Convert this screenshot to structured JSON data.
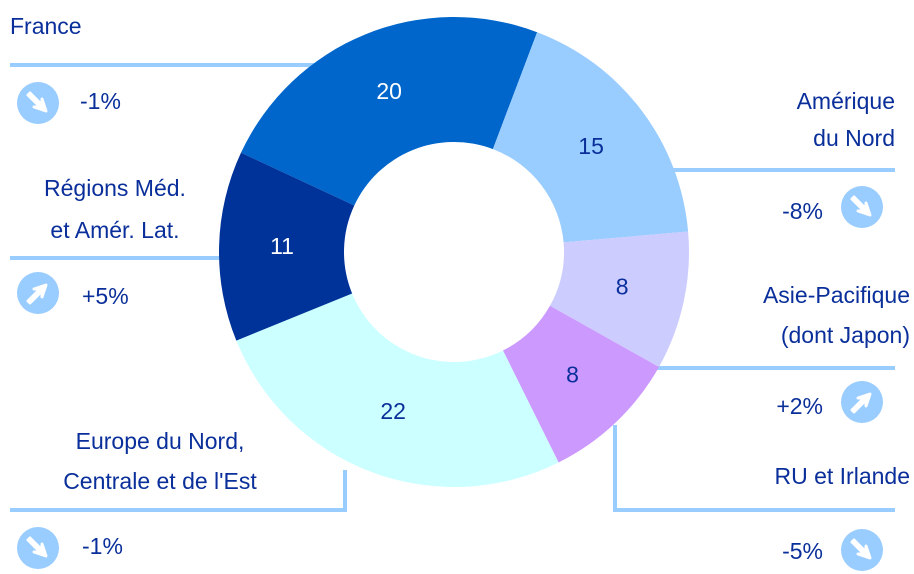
{
  "chart_data": {
    "type": "donut",
    "series": [
      {
        "label": [
          "France"
        ],
        "value": 20,
        "change": "-1%",
        "trend": "down",
        "color": "#0066cc",
        "text_color": "#ffffff"
      },
      {
        "label": [
          "Amérique",
          "du Nord"
        ],
        "value": 15,
        "change": "-8%",
        "trend": "down",
        "color": "#99ccff",
        "text_color": "#0a2f9a"
      },
      {
        "label": [
          "Asie-Pacifique",
          "(dont Japon)"
        ],
        "value": 8,
        "change": "+2%",
        "trend": "up",
        "color": "#ccccff",
        "text_color": "#0a2f9a"
      },
      {
        "label": [
          "RU et Irlande"
        ],
        "value": 8,
        "change": "-5%",
        "trend": "down",
        "color": "#cc99ff",
        "text_color": "#0a2f9a"
      },
      {
        "label": [
          "Europe du Nord,",
          "Centrale et de l'Est"
        ],
        "value": 22,
        "change": "-1%",
        "trend": "down",
        "color": "#ccffff",
        "text_color": "#0a2f9a"
      },
      {
        "label": [
          "Régions Méd.",
          "et Amér. Lat."
        ],
        "value": 11,
        "change": "+5%",
        "trend": "up",
        "color": "#003399",
        "text_color": "#ffffff"
      }
    ]
  }
}
